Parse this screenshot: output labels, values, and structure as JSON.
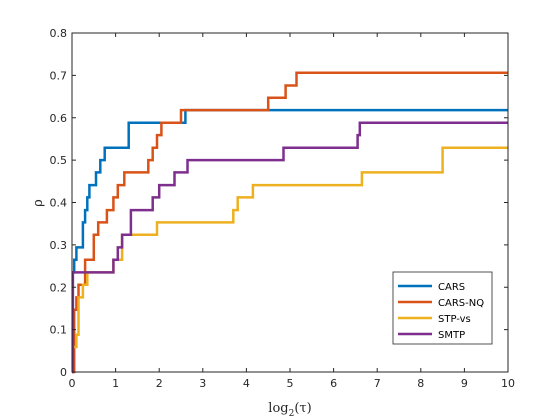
{
  "chart_data": {
    "type": "line",
    "step": true,
    "xlabel": "log",
    "xlabel_sub": "2",
    "xlabel_arg": "(τ)",
    "ylabel": "ρ",
    "xlim": [
      0,
      10
    ],
    "ylim": [
      0,
      0.8
    ],
    "xticks": [
      0,
      1,
      2,
      3,
      4,
      5,
      6,
      7,
      8,
      9,
      10
    ],
    "yticks": [
      0,
      0.1,
      0.2,
      0.3,
      0.4,
      0.5,
      0.6,
      0.7,
      0.8
    ],
    "ytick_labels": [
      "0",
      "0.1",
      "0.2",
      "0.3",
      "0.4",
      "0.5",
      "0.6",
      "0.7",
      "0.8"
    ],
    "grid": false,
    "legend_position": "bottom-right",
    "series": [
      {
        "name": "CARS",
        "color": "#0072BD",
        "x": [
          0,
          0.05,
          0.1,
          0.25,
          0.3,
          0.35,
          0.4,
          0.55,
          0.65,
          0.75,
          1.3,
          2.6,
          10
        ],
        "y": [
          0.235,
          0.265,
          0.294,
          0.353,
          0.382,
          0.412,
          0.441,
          0.471,
          0.5,
          0.529,
          0.588,
          0.618,
          0.618
        ]
      },
      {
        "name": "CARS-NQ",
        "color": "#D95319",
        "x": [
          0,
          0.05,
          0.1,
          0.15,
          0.3,
          0.5,
          0.6,
          0.8,
          0.95,
          1.05,
          1.2,
          1.75,
          1.85,
          1.95,
          2.05,
          2.3,
          2.4,
          2.5,
          4.5,
          4.9,
          5.15,
          10
        ],
        "y": [
          0,
          0.147,
          0.176,
          0.206,
          0.265,
          0.324,
          0.353,
          0.382,
          0.412,
          0.441,
          0.471,
          0.5,
          0.529,
          0.559,
          0.588,
          0.588,
          0.588,
          0.618,
          0.647,
          0.676,
          0.706,
          0.706
        ]
      },
      {
        "name": "STP-vs",
        "color": "#EDB120",
        "x": [
          0,
          0.1,
          0.15,
          0.25,
          0.35,
          0.8,
          0.95,
          1.15,
          1.95,
          3.7,
          3.8,
          4.15,
          6.65,
          8.5,
          10
        ],
        "y": [
          0.059,
          0.088,
          0.176,
          0.206,
          0.235,
          0.235,
          0.265,
          0.324,
          0.353,
          0.382,
          0.412,
          0.441,
          0.471,
          0.529,
          0.529
        ]
      },
      {
        "name": "SMTP",
        "color": "#7E2F8E",
        "x": [
          0,
          0.02,
          0.95,
          1.05,
          1.15,
          1.35,
          1.6,
          1.85,
          2.0,
          2.15,
          2.35,
          2.65,
          4.85,
          6.55,
          6.6,
          10
        ],
        "y": [
          0,
          0.235,
          0.265,
          0.294,
          0.324,
          0.382,
          0.382,
          0.412,
          0.441,
          0.441,
          0.471,
          0.5,
          0.529,
          0.559,
          0.588,
          0.588
        ]
      }
    ]
  }
}
